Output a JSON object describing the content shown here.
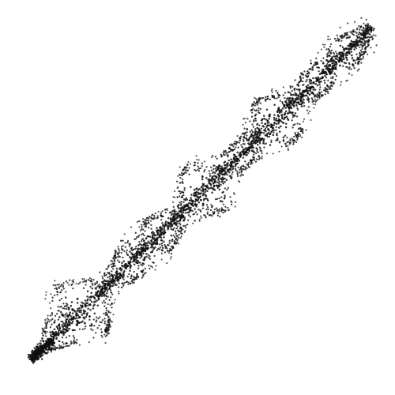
{
  "figure": {
    "kind": "point-cloud",
    "description_visible_text": "",
    "colors": {
      "background": "#ffffff",
      "point": "#111111"
    }
  },
  "chart_data": {
    "type": "scatter",
    "title": "",
    "xlabel": "",
    "ylabel": "",
    "grid": false,
    "legend": "none",
    "axes_visible": false,
    "series": [
      {
        "style": "helical-band",
        "start": [
          0.08,
          0.09
        ],
        "end": [
          0.94,
          0.93
        ],
        "bulge_centers": [
          0.14,
          0.34,
          0.52,
          0.72,
          0.9
        ],
        "bulge_widths": [
          0.11,
          0.06,
          0.09,
          0.08,
          0.05
        ]
      }
    ]
  }
}
